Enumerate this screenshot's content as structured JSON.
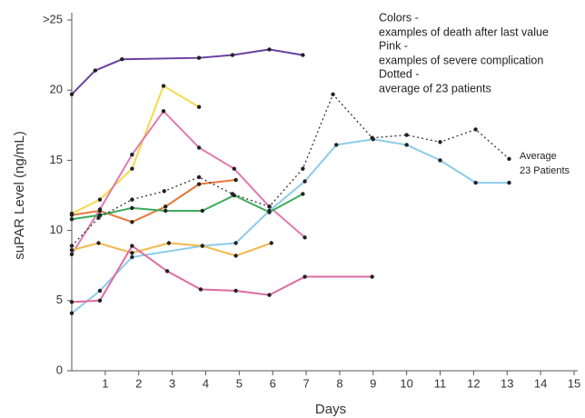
{
  "chart_data": {
    "type": "line",
    "x_label": "Days",
    "y_label": "suPAR Level (ng/mL)",
    "xlim": [
      0,
      15
    ],
    "xticks": [
      1,
      2,
      3,
      4,
      5,
      6,
      7,
      8,
      9,
      10,
      11,
      12,
      13,
      14,
      15
    ],
    "ylim": [
      0,
      25
    ],
    "yticks": [
      0,
      5,
      10,
      15,
      20,
      {
        "value": 25,
        "label": ">25"
      }
    ],
    "annotations": [
      "Colors -",
      "examples of death after last value",
      "Pink -",
      "examples of severe complication",
      "Dotted -",
      "average of 23 patients"
    ],
    "average_label": [
      "Average",
      "23 Patients"
    ],
    "series": [
      {
        "color": "#6a3fa0",
        "x": [
          0,
          0.7,
          1.5,
          3.8,
          4.8,
          5.9,
          6.9
        ],
        "values": [
          19.7,
          21.4,
          22.2,
          22.3,
          22.5,
          22.9,
          22.5
        ]
      },
      {
        "color": "#f5d94a",
        "x": [
          0,
          0.84,
          1.8,
          2.74,
          3.8
        ],
        "values": [
          11.2,
          12.2,
          14.4,
          20.3,
          18.8
        ]
      },
      {
        "color": "#e07ab0",
        "x": [
          0,
          0.84,
          1.8,
          2.74,
          3.8,
          4.85,
          5.9,
          6.96
        ],
        "values": [
          8.3,
          11.5,
          15.4,
          18.5,
          15.9,
          14.4,
          11.7,
          9.5
        ]
      },
      {
        "color": "#8ccbeb",
        "x": [
          0,
          0.84,
          1.8,
          3.9,
          4.9,
          5.9,
          6.96,
          7.9,
          9,
          10,
          11,
          12.06,
          13.06
        ],
        "values": [
          4.1,
          5.7,
          8.1,
          8.9,
          9.1,
          11.4,
          13.5,
          16.1,
          16.5,
          16.1,
          15.0,
          13.4,
          13.4
        ]
      },
      {
        "color": "#e8773a",
        "x": [
          0,
          0.84,
          1.8,
          2.8,
          3.8,
          4.9
        ],
        "values": [
          11.1,
          11.4,
          10.6,
          11.7,
          13.3,
          13.6
        ]
      },
      {
        "color": "#3daa5c",
        "x": [
          0,
          0.84,
          1.8,
          2.8,
          3.9,
          4.85,
          5.9,
          6.9
        ],
        "values": [
          10.8,
          11.1,
          11.6,
          11.4,
          11.4,
          12.5,
          11.3,
          12.6
        ]
      },
      {
        "color": "#f2b84b",
        "x": [
          0,
          0.8,
          1.8,
          2.9,
          3.9,
          4.9,
          5.96
        ],
        "values": [
          8.6,
          9.1,
          8.4,
          9.1,
          8.9,
          8.2,
          9.1
        ]
      },
      {
        "color": "#e06aa0",
        "x": [
          0,
          0.84,
          1.8,
          2.85,
          3.85,
          4.9,
          5.9,
          6.96,
          8.97
        ],
        "values": [
          4.9,
          5.0,
          8.9,
          7.1,
          5.8,
          5.7,
          5.4,
          6.7,
          6.7
        ]
      },
      {
        "color": "#333333",
        "dotted": true,
        "x": [
          0,
          0.8,
          1.8,
          2.76,
          3.8,
          4.8,
          5.9,
          6.9,
          7.8,
          8.97,
          10,
          11,
          12.06,
          13.06
        ],
        "values": [
          8.9,
          10.9,
          12.2,
          12.8,
          13.8,
          12.6,
          11.7,
          14.4,
          19.7,
          16.6,
          16.8,
          16.3,
          17.2,
          15.1
        ]
      }
    ]
  }
}
